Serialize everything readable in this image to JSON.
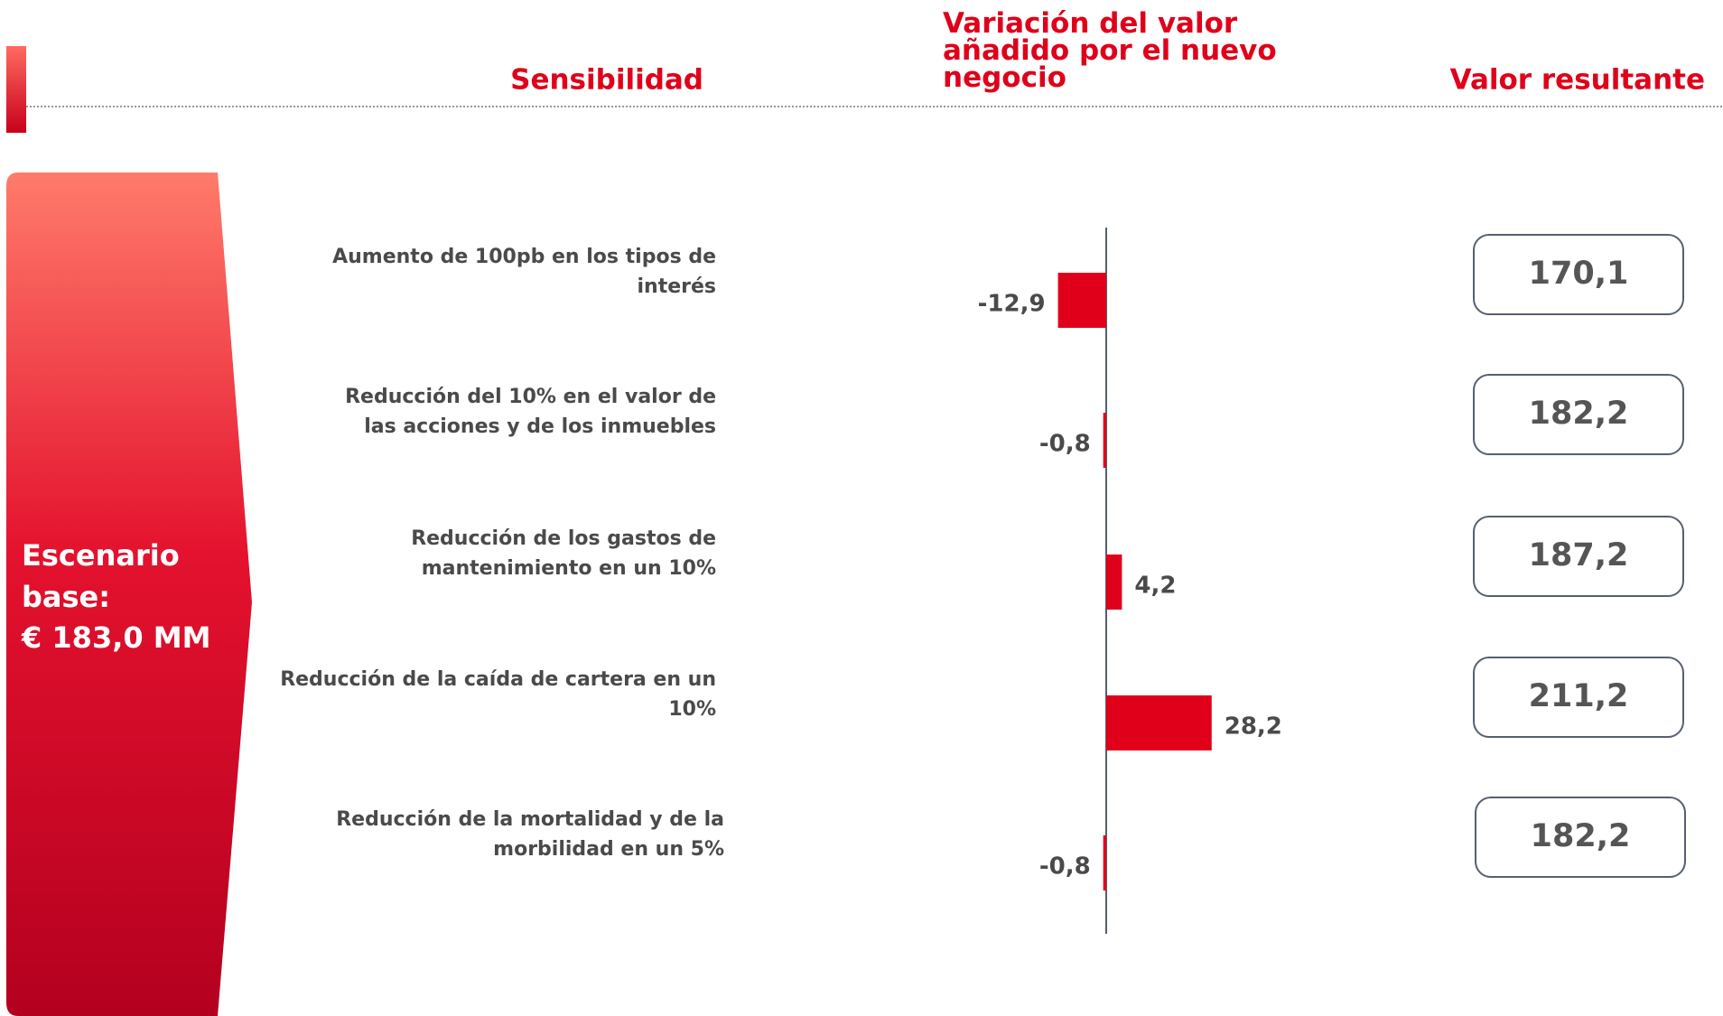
{
  "header": {
    "sensitivity": "Sensibilidad",
    "variation": "Variación del valor añadido por el nuevo negocio",
    "result": "Valor resultante"
  },
  "scenario": {
    "label": "Escenario base:",
    "value": "€ 183,0 MM"
  },
  "chart_data": {
    "type": "hbar",
    "categories": [
      "Aumento de 100pb en los tipos de interés",
      "Reducción del 10% en el valor de las acciones y de los inmuebles",
      "Reducción de los gastos de mantenimiento en un 10%",
      "Reducción de la caída de cartera en un 10%",
      "Reducción de la mortalidad y de la morbilidad en un 5%"
    ],
    "values": [
      -12.9,
      -0.8,
      4.2,
      28.2,
      -0.8
    ],
    "value_labels": [
      "-12,9",
      "-0,8",
      "4,2",
      "28,2",
      "-0,8"
    ],
    "color": "#e0001a",
    "xlim": [
      -40,
      40
    ]
  },
  "results": [
    "170,1",
    "182,2",
    "187,2",
    "211,2",
    "182,2"
  ]
}
